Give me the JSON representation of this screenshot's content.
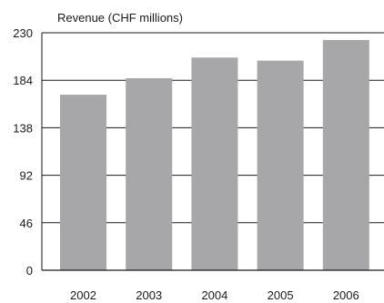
{
  "chart_data": {
    "type": "bar",
    "title": "Revenue (CHF millions)",
    "xlabel": "",
    "ylabel": "",
    "categories": [
      "2002",
      "2003",
      "2004",
      "2005",
      "2006"
    ],
    "values": [
      170,
      186,
      206,
      203,
      223
    ],
    "ylim": [
      0,
      230
    ],
    "yticks": [
      0,
      46,
      92,
      138,
      184,
      230
    ],
    "grid": true,
    "legend": "none",
    "bar_color": "#a7a7a9",
    "grid_color": "#1a1a1a"
  }
}
